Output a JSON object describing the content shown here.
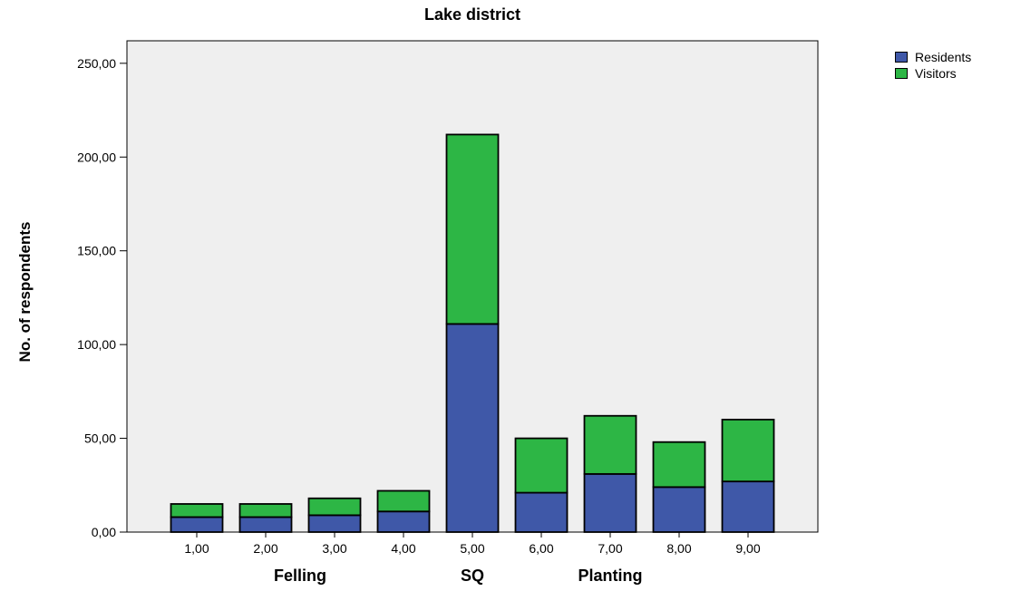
{
  "chart_data": {
    "type": "bar",
    "stacked": true,
    "title": "Lake district",
    "xlabel": "",
    "ylabel": "No. of respondents",
    "categories": [
      "1,00",
      "2,00",
      "3,00",
      "4,00",
      "5,00",
      "6,00",
      "7,00",
      "8,00",
      "9,00"
    ],
    "series": [
      {
        "name": "Residents",
        "color": "#3f58a8",
        "values": [
          8,
          8,
          9,
          11,
          111,
          21,
          31,
          24,
          27
        ]
      },
      {
        "name": "Visitors",
        "color": "#2db645",
        "values": [
          7,
          7,
          9,
          11,
          101,
          29,
          31,
          24,
          33
        ]
      }
    ],
    "ylim": [
      0,
      262
    ],
    "yticks": [
      "0,00",
      "50,00",
      "100,00",
      "150,00",
      "200,00",
      "250,00"
    ],
    "ytick_values": [
      0,
      50,
      100,
      150,
      200,
      250
    ],
    "group_labels": [
      {
        "text": "Felling",
        "center_category": 2.5
      },
      {
        "text": "SQ",
        "center_category": 5
      },
      {
        "text": "Planting",
        "center_category": 7
      }
    ],
    "grid": false,
    "plot_background": "#efefef",
    "legend_position": "top-right"
  }
}
